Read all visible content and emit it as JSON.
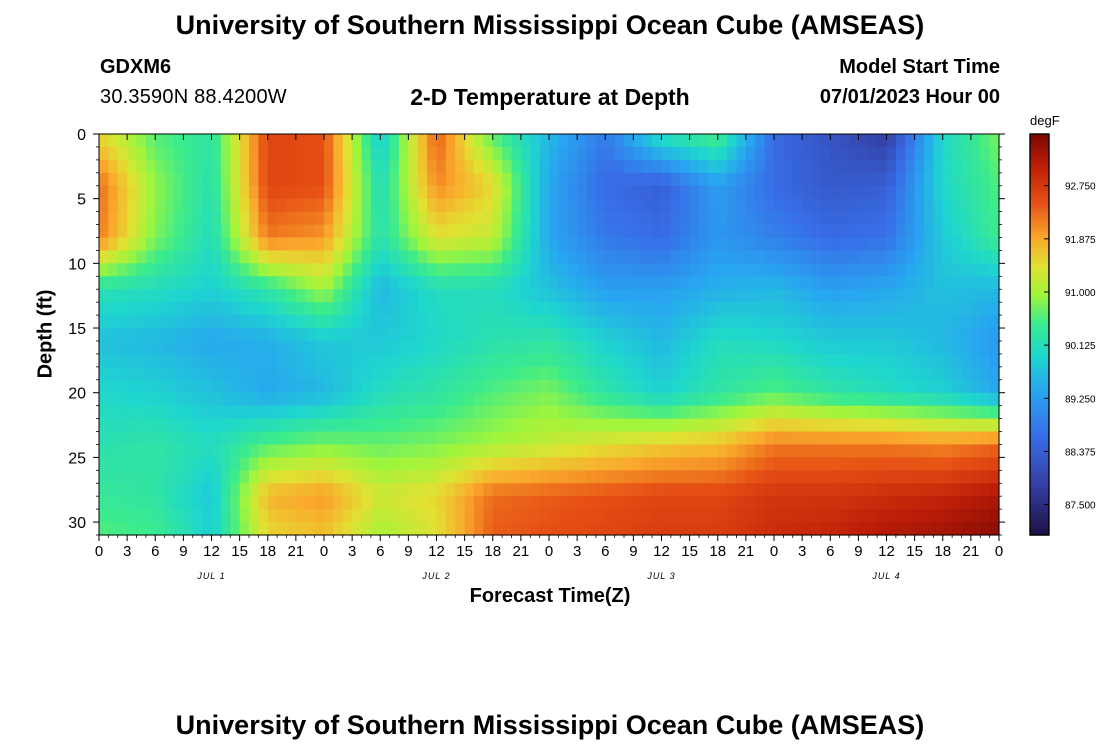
{
  "header": {
    "title": "University of Southern Mississippi Ocean Cube (AMSEAS)",
    "station": "GDXM6",
    "coordinates": "30.3590N  88.4200W",
    "subtitle": "2-D Temperature at Depth",
    "model_start_label": "Model Start Time",
    "model_start_value": "07/01/2023 Hour 00"
  },
  "footer": {
    "title": "University of Southern Mississippi Ocean Cube (AMSEAS)"
  },
  "chart_data": {
    "type": "heatmap",
    "title": "2-D Temperature at Depth",
    "xlabel": "Forecast Time(Z)",
    "ylabel": "Depth (ft)",
    "x_hours": [
      0,
      6,
      12,
      18,
      24,
      30,
      36,
      42,
      48,
      54,
      60,
      66,
      72,
      78,
      84,
      90,
      96
    ],
    "x_tick_labels": [
      "0",
      "3",
      "6",
      "9",
      "12",
      "15",
      "18",
      "21",
      "0",
      "3",
      "6",
      "9",
      "12",
      "15",
      "18",
      "21",
      "0",
      "3",
      "6",
      "9",
      "12",
      "15",
      "18",
      "21",
      "0",
      "3",
      "6",
      "9",
      "12",
      "15",
      "18",
      "21",
      "0"
    ],
    "day_labels": [
      "JUL 1",
      "JUL 2",
      "JUL 3",
      "JUL 4"
    ],
    "depths": [
      0,
      4,
      8,
      12,
      16,
      20,
      24,
      28,
      31
    ],
    "y_ticks": [
      0,
      5,
      10,
      15,
      20,
      25,
      30
    ],
    "ylim": [
      0,
      31
    ],
    "xlim": [
      0,
      96
    ],
    "temperatures": [
      [
        91.5,
        90.6,
        90.3,
        92.6,
        92.5,
        89.8,
        92.4,
        90.6,
        89.6,
        88.8,
        90.2,
        90.6,
        88.6,
        88.2,
        87.8,
        90.0,
        90.8
      ],
      [
        92.3,
        90.9,
        90.2,
        92.6,
        92.5,
        90.1,
        92.1,
        91.5,
        89.4,
        88.6,
        88.4,
        89.3,
        88.6,
        88.3,
        88.4,
        90.0,
        90.6
      ],
      [
        92.2,
        90.8,
        90.1,
        92.2,
        92.0,
        90.2,
        91.4,
        91.2,
        89.4,
        88.8,
        88.6,
        89.2,
        88.9,
        88.6,
        88.7,
        89.8,
        90.5
      ],
      [
        90.2,
        90.1,
        89.9,
        90.3,
        91.0,
        89.6,
        90.1,
        90.1,
        89.7,
        89.3,
        89.3,
        89.5,
        89.6,
        89.3,
        89.4,
        89.7,
        89.6
      ],
      [
        89.7,
        89.6,
        89.4,
        89.5,
        89.8,
        89.8,
        90.0,
        90.2,
        90.3,
        89.9,
        89.6,
        90.1,
        90.0,
        89.8,
        89.8,
        89.6,
        89.2
      ],
      [
        90.0,
        89.9,
        89.7,
        89.4,
        89.6,
        90.1,
        90.3,
        90.6,
        90.8,
        90.3,
        89.9,
        90.3,
        90.6,
        90.3,
        90.1,
        89.9,
        89.4
      ],
      [
        90.2,
        90.3,
        90.1,
        90.6,
        90.8,
        90.7,
        90.8,
        91.0,
        91.2,
        91.4,
        91.6,
        91.7,
        92.2,
        92.2,
        92.2,
        92.1,
        92.3
      ],
      [
        90.4,
        90.3,
        89.8,
        91.8,
        92.0,
        91.3,
        91.5,
        92.3,
        92.4,
        92.5,
        92.6,
        92.6,
        92.8,
        92.8,
        92.9,
        93.0,
        93.2
      ],
      [
        90.6,
        90.5,
        89.9,
        91.5,
        91.7,
        91.0,
        91.4,
        92.4,
        92.5,
        92.6,
        92.7,
        92.7,
        92.9,
        93.0,
        93.2,
        93.3,
        93.5
      ]
    ],
    "colorbar": {
      "unit": "degF",
      "min": 87.0,
      "max": 93.6,
      "tick_labels": [
        "92.750",
        "91.875",
        "91.000",
        "90.125",
        "89.250",
        "88.375",
        "87.500"
      ],
      "tick_values": [
        92.75,
        91.875,
        91.0,
        90.125,
        89.25,
        88.375,
        87.5
      ]
    }
  }
}
